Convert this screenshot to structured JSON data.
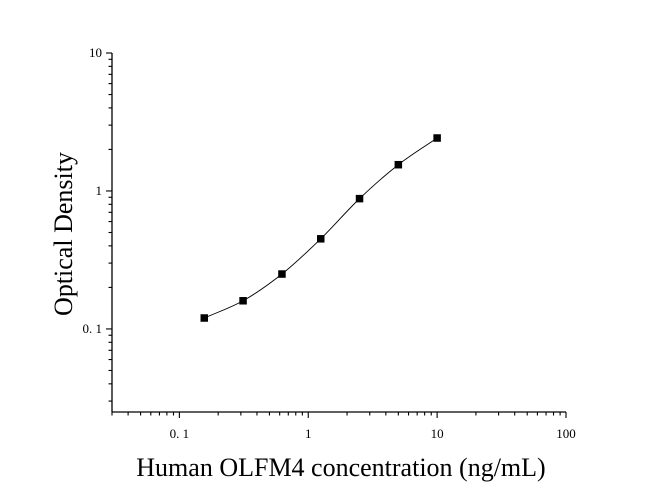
{
  "chart_data": {
    "type": "scatter",
    "title": "",
    "xlabel": "Human OLFM4 concentration (ng/mL)",
    "ylabel": "Optical Density",
    "xscale": "log",
    "yscale": "log",
    "xlim": [
      0.03,
      100
    ],
    "ylim": [
      0.025,
      10
    ],
    "x_tick_labels": [
      {
        "value": 0.1,
        "label": "0. 1"
      },
      {
        "value": 1,
        "label": "1"
      },
      {
        "value": 10,
        "label": "10"
      },
      {
        "value": 100,
        "label": "100"
      }
    ],
    "y_tick_labels": [
      {
        "value": 0.1,
        "label": "0. 1"
      },
      {
        "value": 1,
        "label": "1"
      },
      {
        "value": 10,
        "label": "10"
      }
    ],
    "grid": false,
    "legend": "none",
    "marker": "square",
    "series": [
      {
        "x": [
          0.156,
          0.312,
          0.625,
          1.25,
          2.5,
          5,
          10
        ],
        "y": [
          0.12,
          0.16,
          0.25,
          0.45,
          0.88,
          1.55,
          2.42
        ]
      }
    ],
    "fit_curve": true
  }
}
